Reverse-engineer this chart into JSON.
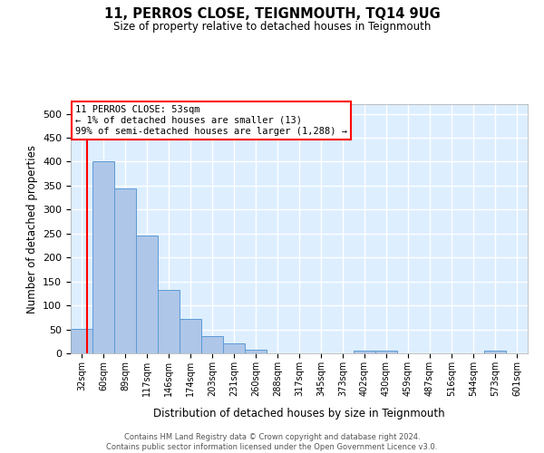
{
  "title": "11, PERROS CLOSE, TEIGNMOUTH, TQ14 9UG",
  "subtitle": "Size of property relative to detached houses in Teignmouth",
  "xlabel": "Distribution of detached houses by size in Teignmouth",
  "ylabel": "Number of detached properties",
  "categories": [
    "32sqm",
    "60sqm",
    "89sqm",
    "117sqm",
    "146sqm",
    "174sqm",
    "203sqm",
    "231sqm",
    "260sqm",
    "288sqm",
    "317sqm",
    "345sqm",
    "373sqm",
    "402sqm",
    "430sqm",
    "459sqm",
    "487sqm",
    "516sqm",
    "544sqm",
    "573sqm",
    "601sqm"
  ],
  "values": [
    51,
    401,
    345,
    246,
    132,
    71,
    35,
    20,
    7,
    0,
    0,
    0,
    0,
    6,
    6,
    0,
    0,
    0,
    0,
    5,
    0
  ],
  "bar_color": "#aec6e8",
  "bar_edge_color": "#5b9bd5",
  "annotation_box_text": "11 PERROS CLOSE: 53sqm\n← 1% of detached houses are smaller (13)\n99% of semi-detached houses are larger (1,288) →",
  "background_color": "#ddeeff",
  "grid_color": "#ffffff",
  "footer_text": "Contains HM Land Registry data © Crown copyright and database right 2024.\nContains public sector information licensed under the Open Government Licence v3.0.",
  "ylim": [
    0,
    520
  ],
  "yticks": [
    0,
    50,
    100,
    150,
    200,
    250,
    300,
    350,
    400,
    450,
    500
  ]
}
